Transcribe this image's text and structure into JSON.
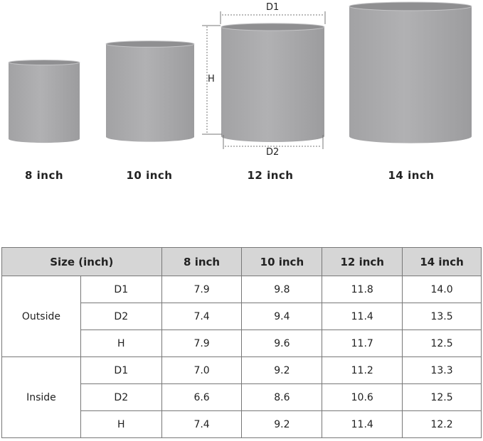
{
  "pots": [
    {
      "label": "8 inch"
    },
    {
      "label": "10 inch"
    },
    {
      "label": "12 inch"
    },
    {
      "label": "14 inch"
    }
  ],
  "dimension_labels": {
    "d1": "D1",
    "d2": "D2",
    "h": "H"
  },
  "colors": {
    "pot": "#a9a9ab",
    "header_bg": "#d6d6d6",
    "border": "#777777"
  },
  "table": {
    "header": {
      "size": "Size (inch)",
      "cols": [
        "8 inch",
        "10 inch",
        "12 inch",
        "14 inch"
      ]
    },
    "groups": [
      {
        "name": "Outside",
        "rows": [
          {
            "dim": "D1",
            "values": [
              "7.9",
              "9.8",
              "11.8",
              "14.0"
            ]
          },
          {
            "dim": "D2",
            "values": [
              "7.4",
              "9.4",
              "11.4",
              "13.5"
            ]
          },
          {
            "dim": "H",
            "values": [
              "7.9",
              "9.6",
              "11.7",
              "12.5"
            ]
          }
        ]
      },
      {
        "name": "Inside",
        "rows": [
          {
            "dim": "D1",
            "values": [
              "7.0",
              "9.2",
              "11.2",
              "13.3"
            ]
          },
          {
            "dim": "D2",
            "values": [
              "6.6",
              "8.6",
              "10.6",
              "12.5"
            ]
          },
          {
            "dim": "H",
            "values": [
              "7.4",
              "9.2",
              "11.4",
              "12.2"
            ]
          }
        ]
      }
    ]
  }
}
